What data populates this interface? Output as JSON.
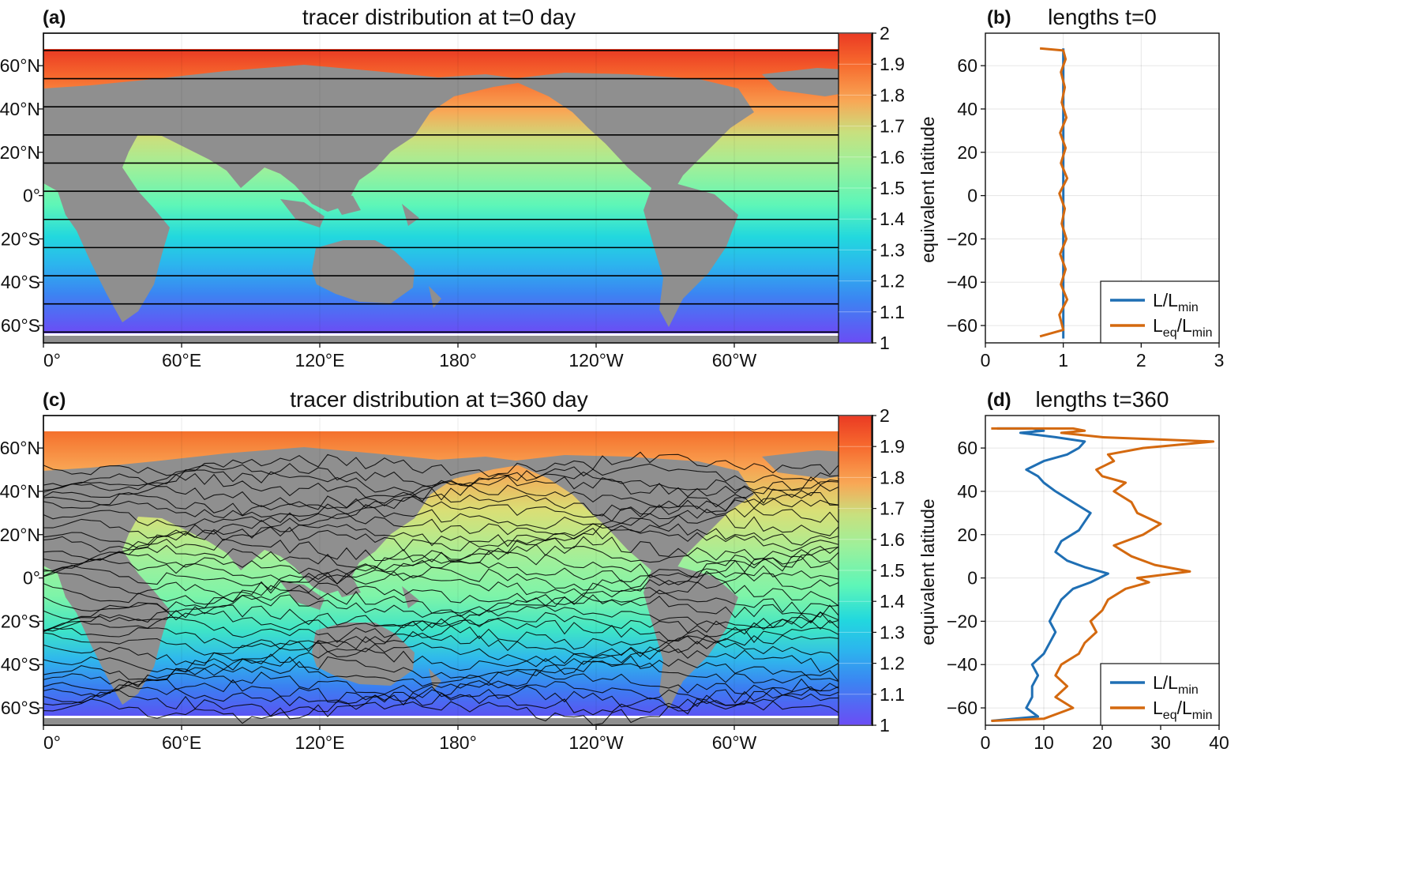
{
  "chart_data": [
    {
      "panel": "(a)",
      "type": "heatmap",
      "title": "tracer distribution at t=0 day",
      "xticks": [
        "0°",
        "60°E",
        "120°E",
        "180°",
        "120°W",
        "60°W"
      ],
      "yticks": [
        "60°N",
        "40°N",
        "20°N",
        "0°",
        "20°S",
        "40°S",
        "60°S"
      ],
      "colorbar": {
        "min": 1,
        "max": 2,
        "ticks": [
          "2",
          "1.9",
          "1.8",
          "1.7",
          "1.6",
          "1.5",
          "1.4",
          "1.3",
          "1.2",
          "1.1",
          "1"
        ],
        "colormap": "rainbow"
      },
      "contour_latitudes": [
        67,
        54,
        41,
        28,
        15,
        2,
        -11,
        -24,
        -37,
        -50,
        -63
      ]
    },
    {
      "panel": "(b)",
      "type": "line",
      "title": "lengths t=0",
      "xlim": [
        0,
        3
      ],
      "ylim": [
        -68,
        75
      ],
      "xticks": [
        "0",
        "1",
        "2",
        "3"
      ],
      "yticks": [
        "60",
        "40",
        "20",
        "0",
        "−20",
        "−40",
        "−60"
      ],
      "ylabel": "equivalent latitude",
      "legend_position": "lower-right",
      "series": [
        {
          "name": "L/L",
          "sub": "min",
          "color": "#1f6fb4",
          "x": [
            1.0,
            1.0,
            1.0,
            1.0,
            1.0,
            1.0,
            1.0,
            1.0
          ],
          "y": [
            -66,
            -60,
            -40,
            -20,
            0,
            20,
            40,
            68
          ]
        },
        {
          "name": "L",
          "sub": "eq",
          "suffix": "/L",
          "sub2": "min",
          "color": "#d4690f",
          "x": [
            0.7,
            1.0,
            0.95,
            1.05,
            0.97,
            1.03,
            0.96,
            1.04,
            0.98,
            1.02,
            0.95,
            1.05,
            0.97,
            1.03,
            0.96,
            1.04,
            0.98,
            1.02,
            0.97,
            1.03,
            1.0,
            0.7
          ],
          "y": [
            -65,
            -62,
            -55,
            -48,
            -41,
            -34,
            -27,
            -20,
            -13,
            -6,
            1,
            8,
            15,
            22,
            29,
            36,
            43,
            50,
            57,
            63,
            67,
            68
          ]
        }
      ]
    },
    {
      "panel": "(c)",
      "type": "heatmap",
      "title": "tracer distribution at t=360 day",
      "xticks": [
        "0°",
        "60°E",
        "120°E",
        "180°",
        "120°W",
        "60°W"
      ],
      "yticks": [
        "60°N",
        "40°N",
        "20°N",
        "0°",
        "20°S",
        "40°S",
        "60°S"
      ],
      "colorbar": {
        "min": 1,
        "max": 2,
        "ticks": [
          "2",
          "1.9",
          "1.8",
          "1.7",
          "1.6",
          "1.5",
          "1.4",
          "1.3",
          "1.2",
          "1.1",
          "1"
        ],
        "colormap": "rainbow"
      }
    },
    {
      "panel": "(d)",
      "type": "line",
      "title": "lengths t=360",
      "xlim": [
        0,
        40
      ],
      "ylim": [
        -68,
        75
      ],
      "xticks": [
        "0",
        "10",
        "20",
        "30",
        "40"
      ],
      "yticks": [
        "60",
        "40",
        "20",
        "0",
        "−20",
        "−40",
        "−60"
      ],
      "ylabel": "equivalent latitude",
      "legend_position": "lower-right",
      "series": [
        {
          "name": "L/L",
          "sub": "min",
          "color": "#1f6fb4",
          "x": [
            1,
            9,
            7,
            8,
            8,
            9,
            8,
            10,
            11,
            12,
            11,
            12,
            13,
            15,
            18,
            21,
            17,
            14,
            12,
            13,
            16,
            17,
            18,
            15,
            12,
            10,
            9,
            7,
            10,
            14,
            16,
            17,
            12,
            6,
            10,
            8,
            2
          ],
          "y": [
            -66,
            -64,
            -60,
            -55,
            -50,
            -45,
            -40,
            -35,
            -30,
            -25,
            -20,
            -15,
            -10,
            -5,
            -2,
            2,
            5,
            8,
            12,
            17,
            22,
            26,
            30,
            35,
            40,
            44,
            47,
            50,
            54,
            57,
            60,
            63,
            65,
            67,
            68,
            69,
            69
          ]
        },
        {
          "name": "L",
          "sub": "eq",
          "suffix": "/L",
          "sub2": "min",
          "color": "#d4690f",
          "x": [
            1,
            10,
            15,
            12,
            14,
            12,
            13,
            16,
            17,
            19,
            18,
            20,
            21,
            24,
            28,
            26,
            35,
            29,
            25,
            22,
            27,
            30,
            26,
            25,
            22,
            24,
            20,
            19,
            22,
            21,
            27,
            39,
            20,
            13,
            17,
            15,
            1
          ],
          "y": [
            -66,
            -65,
            -60,
            -55,
            -50,
            -45,
            -40,
            -35,
            -30,
            -25,
            -20,
            -15,
            -10,
            -5,
            -2,
            0,
            3,
            6,
            10,
            15,
            20,
            25,
            30,
            35,
            40,
            44,
            47,
            50,
            54,
            57,
            60,
            63,
            65,
            67,
            68,
            69,
            69
          ]
        }
      ]
    }
  ]
}
